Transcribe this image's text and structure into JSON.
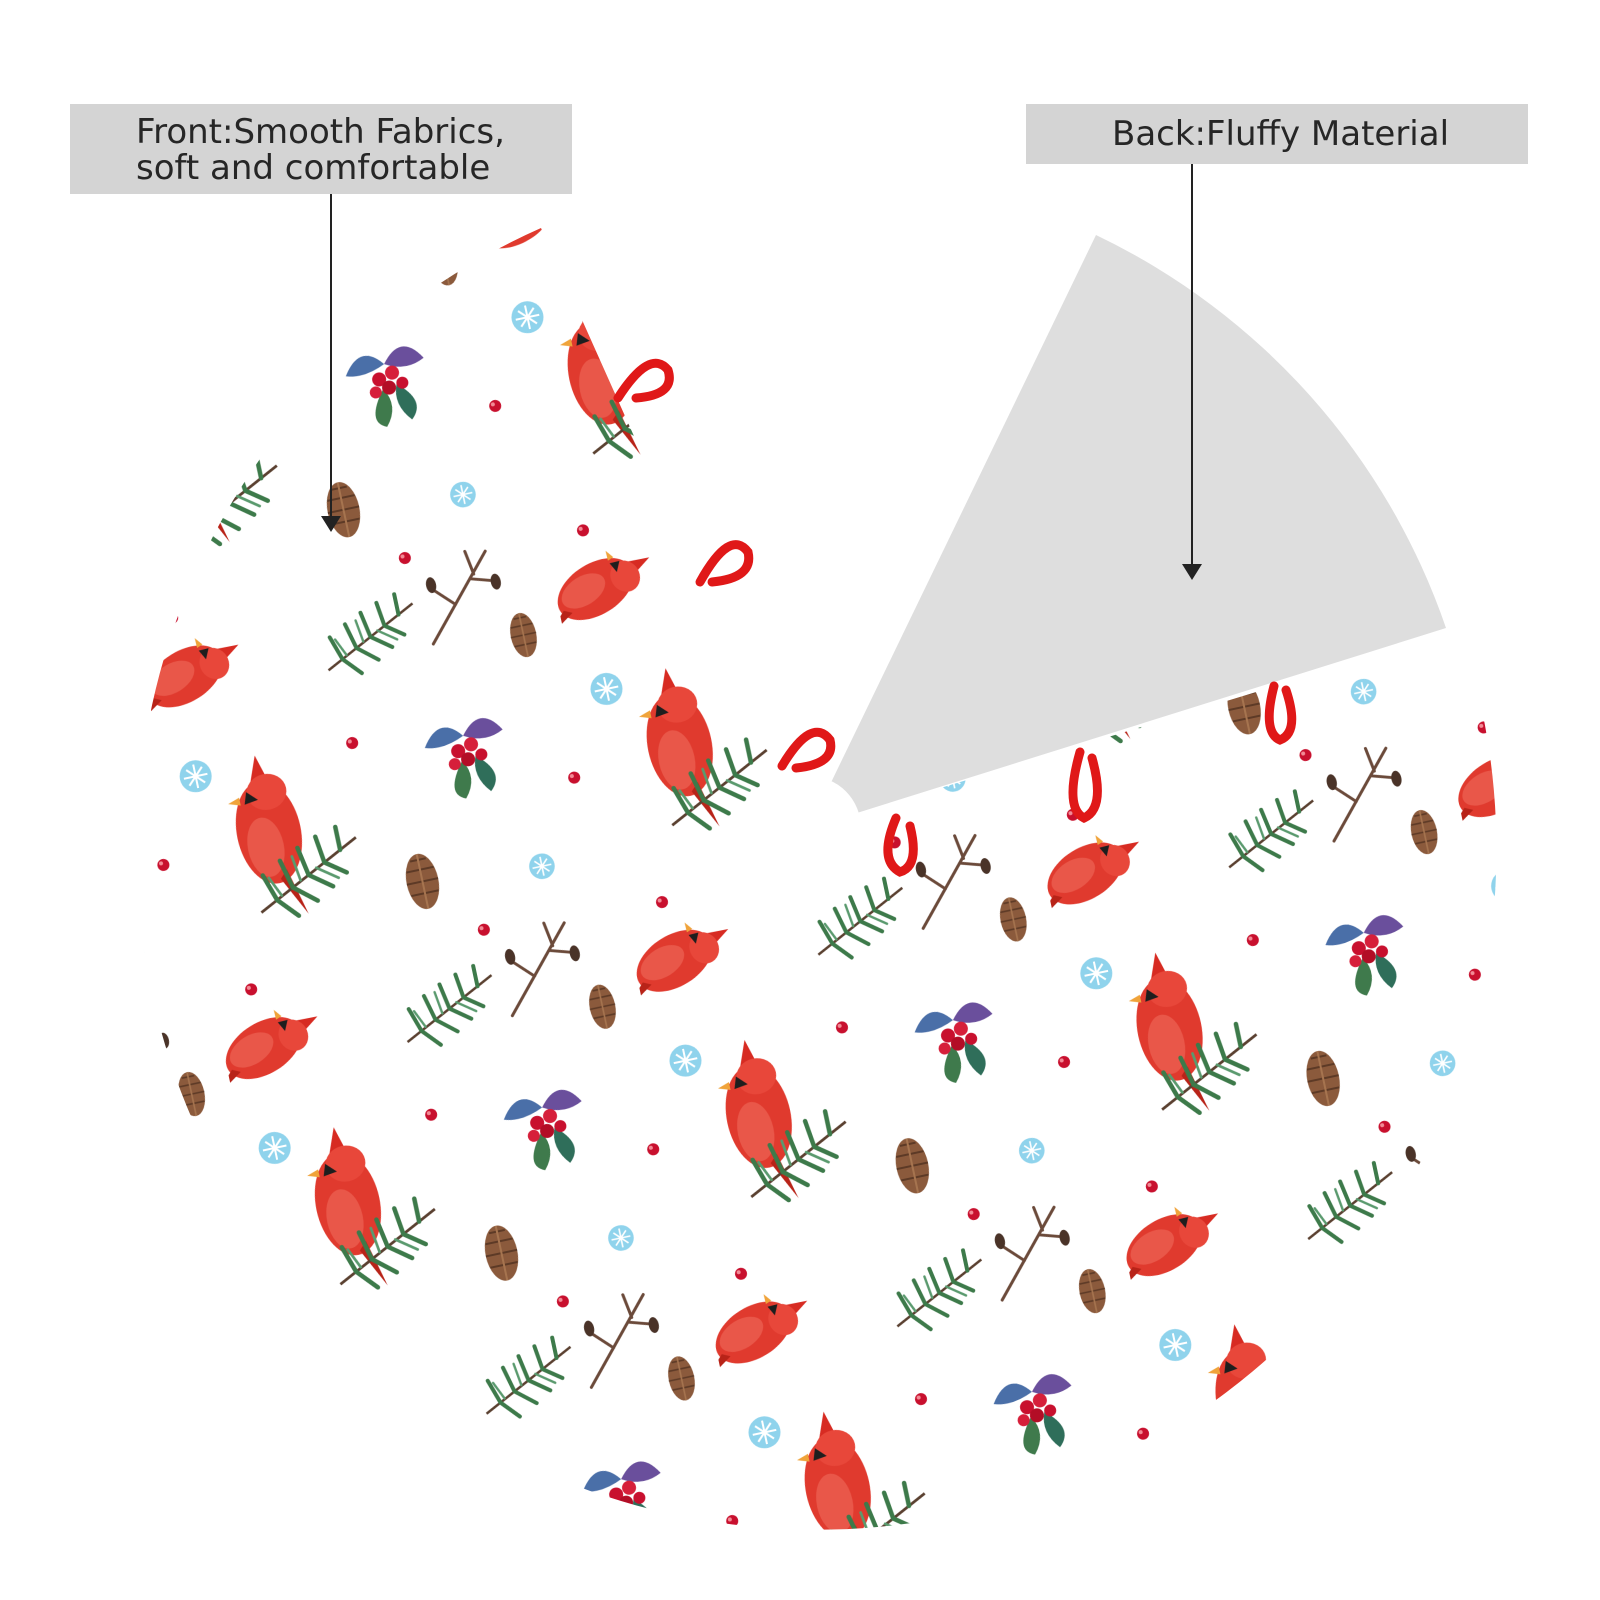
{
  "callouts": {
    "front_line1": "Front:Smooth Fabrics,",
    "front_line2": "soft and comfortable",
    "back": "Back:Fluffy Material"
  },
  "colors": {
    "callout_bg": "#d4d4d4",
    "back_fabric": "#dedede",
    "front_fabric": "#ffffff",
    "ribbon": "#e01818",
    "cardinal_red": "#e03a2e",
    "pine_green": "#3d7a4a",
    "berry_red": "#c8102e",
    "snowflake_blue": "#4fb3d9",
    "pinecone_brown": "#8b5a3c"
  },
  "icons": {
    "front_pointer": "arrow-down-icon",
    "back_pointer": "arrow-down-icon",
    "pattern": [
      "cardinal-bird",
      "pine-branch",
      "holly-berries",
      "pinecone",
      "snowflake",
      "twig"
    ]
  }
}
